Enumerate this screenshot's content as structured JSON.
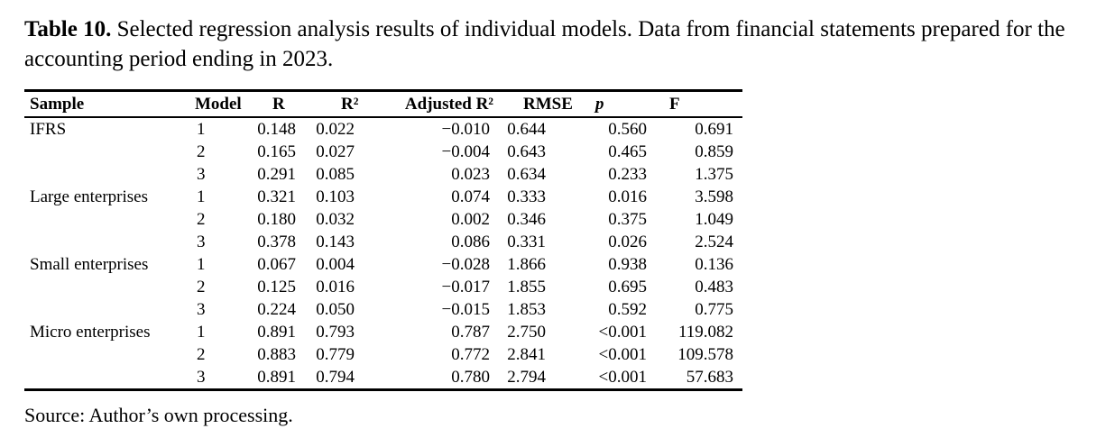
{
  "caption": {
    "label": "Table 10.",
    "text": "Selected regression analysis results of individual models. Data from financial statements prepared for the accounting period ending in 2023."
  },
  "table": {
    "columns": [
      "Sample",
      "Model",
      "R",
      "R²",
      "Adjusted R²",
      "RMSE",
      "p",
      "F"
    ],
    "rows": [
      {
        "sample": "IFRS",
        "model": "1",
        "r": "0.148",
        "r2": "0.022",
        "adj_r2": "−0.010",
        "rmse": "0.644",
        "p": "0.560",
        "f": "0.691"
      },
      {
        "sample": "",
        "model": "2",
        "r": "0.165",
        "r2": "0.027",
        "adj_r2": "−0.004",
        "rmse": "0.643",
        "p": "0.465",
        "f": "0.859"
      },
      {
        "sample": "",
        "model": "3",
        "r": "0.291",
        "r2": "0.085",
        "adj_r2": "0.023",
        "rmse": "0.634",
        "p": "0.233",
        "f": "1.375"
      },
      {
        "sample": "Large enterprises",
        "model": "1",
        "r": "0.321",
        "r2": "0.103",
        "adj_r2": "0.074",
        "rmse": "0.333",
        "p": "0.016",
        "f": "3.598"
      },
      {
        "sample": "",
        "model": "2",
        "r": "0.180",
        "r2": "0.032",
        "adj_r2": "0.002",
        "rmse": "0.346",
        "p": "0.375",
        "f": "1.049"
      },
      {
        "sample": "",
        "model": "3",
        "r": "0.378",
        "r2": "0.143",
        "adj_r2": "0.086",
        "rmse": "0.331",
        "p": "0.026",
        "f": "2.524"
      },
      {
        "sample": "Small enterprises",
        "model": "1",
        "r": "0.067",
        "r2": "0.004",
        "adj_r2": "−0.028",
        "rmse": "1.866",
        "p": "0.938",
        "f": "0.136"
      },
      {
        "sample": "",
        "model": "2",
        "r": "0.125",
        "r2": "0.016",
        "adj_r2": "−0.017",
        "rmse": "1.855",
        "p": "0.695",
        "f": "0.483"
      },
      {
        "sample": "",
        "model": "3",
        "r": "0.224",
        "r2": "0.050",
        "adj_r2": "−0.015",
        "rmse": "1.853",
        "p": "0.592",
        "f": "0.775"
      },
      {
        "sample": "Micro enterprises",
        "model": "1",
        "r": "0.891",
        "r2": "0.793",
        "adj_r2": "0.787",
        "rmse": "2.750",
        "p": "<0.001",
        "f": "119.082"
      },
      {
        "sample": "",
        "model": "2",
        "r": "0.883",
        "r2": "0.779",
        "adj_r2": "0.772",
        "rmse": "2.841",
        "p": "<0.001",
        "f": "109.578"
      },
      {
        "sample": "",
        "model": "3",
        "r": "0.891",
        "r2": "0.794",
        "adj_r2": "0.780",
        "rmse": "2.794",
        "p": "<0.001",
        "f": "57.683"
      }
    ]
  },
  "source": "Source: Author’s own processing."
}
